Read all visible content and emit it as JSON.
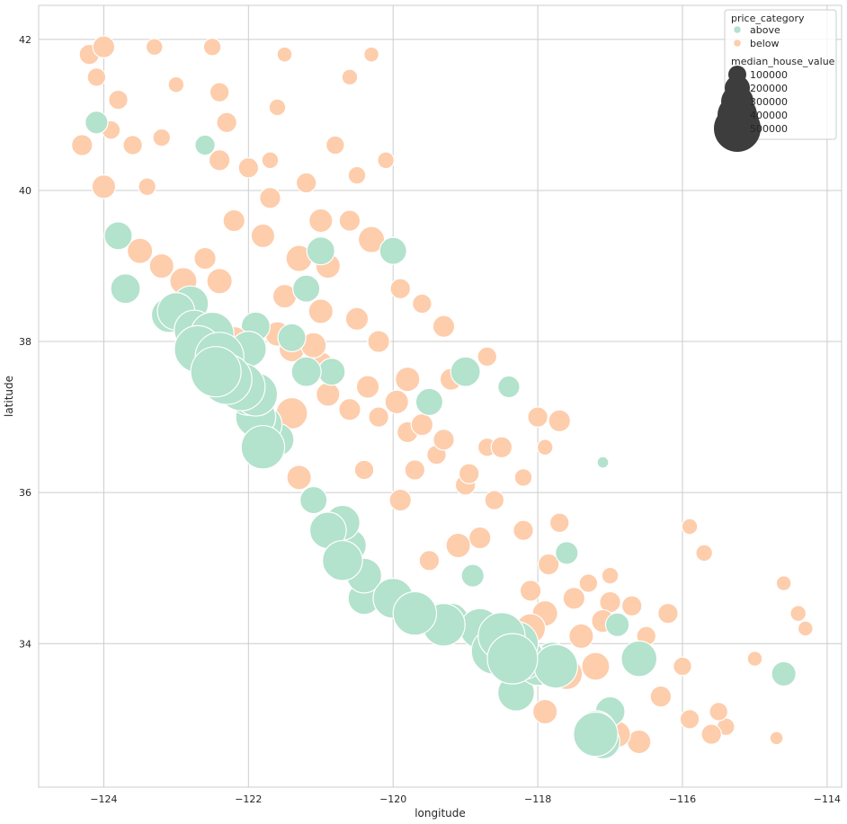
{
  "chart_data": {
    "type": "scatter",
    "title": "",
    "xlabel": "longitude",
    "ylabel": "latitude",
    "xlim": [
      -124.9,
      -113.8
    ],
    "ylim": [
      32.1,
      42.45
    ],
    "x_ticks": [
      -124,
      -122,
      -120,
      -118,
      -116,
      -114
    ],
    "x_tick_labels": [
      "−124",
      "−122",
      "−120",
      "−118",
      "−116",
      "−114"
    ],
    "y_ticks": [
      34,
      36,
      38,
      40,
      42
    ],
    "y_tick_labels": [
      "34",
      "36",
      "38",
      "40",
      "42"
    ],
    "grid": true,
    "legend_position": "top-right",
    "hue_title": "price_category",
    "size_title": "median_house_value",
    "series": [
      {
        "name": "above",
        "color": "#b3e2cd"
      },
      {
        "name": "below",
        "color": "#fdcdac"
      }
    ],
    "size_legend": [
      {
        "label": "100000",
        "value": 100000
      },
      {
        "label": "200000",
        "value": 200000
      },
      {
        "label": "300000",
        "value": 300000
      },
      {
        "label": "400000",
        "value": 400000
      },
      {
        "label": "500000",
        "value": 500000
      }
    ],
    "point_color_edge": "#ffffff",
    "size_legend_color": "#3d3d3d",
    "points": [
      {
        "x": -124.2,
        "y": 41.8,
        "v": 150000,
        "c": "below"
      },
      {
        "x": -124.0,
        "y": 41.9,
        "v": 170000,
        "c": "below"
      },
      {
        "x": -124.3,
        "y": 40.6,
        "v": 160000,
        "c": "below"
      },
      {
        "x": -124.1,
        "y": 40.9,
        "v": 180000,
        "c": "above"
      },
      {
        "x": -123.9,
        "y": 40.8,
        "v": 130000,
        "c": "below"
      },
      {
        "x": -124.0,
        "y": 40.05,
        "v": 190000,
        "c": "below"
      },
      {
        "x": -123.6,
        "y": 40.6,
        "v": 140000,
        "c": "below"
      },
      {
        "x": -123.2,
        "y": 40.7,
        "v": 120000,
        "c": "below"
      },
      {
        "x": -122.6,
        "y": 40.6,
        "v": 150000,
        "c": "above"
      },
      {
        "x": -122.4,
        "y": 41.3,
        "v": 140000,
        "c": "below"
      },
      {
        "x": -122.4,
        "y": 40.4,
        "v": 160000,
        "c": "below"
      },
      {
        "x": -122.0,
        "y": 40.3,
        "v": 150000,
        "c": "below"
      },
      {
        "x": -121.7,
        "y": 40.4,
        "v": 110000,
        "c": "below"
      },
      {
        "x": -121.2,
        "y": 40.1,
        "v": 150000,
        "c": "below"
      },
      {
        "x": -120.8,
        "y": 40.6,
        "v": 130000,
        "c": "below"
      },
      {
        "x": -120.5,
        "y": 40.2,
        "v": 120000,
        "c": "below"
      },
      {
        "x": -121.7,
        "y": 39.9,
        "v": 160000,
        "c": "below"
      },
      {
        "x": -122.2,
        "y": 39.6,
        "v": 170000,
        "c": "below"
      },
      {
        "x": -121.8,
        "y": 39.4,
        "v": 190000,
        "c": "below"
      },
      {
        "x": -121.3,
        "y": 39.1,
        "v": 220000,
        "c": "below"
      },
      {
        "x": -121.0,
        "y": 39.2,
        "v": 240000,
        "c": "above"
      },
      {
        "x": -120.9,
        "y": 39.0,
        "v": 200000,
        "c": "below"
      },
      {
        "x": -120.3,
        "y": 39.35,
        "v": 220000,
        "c": "below"
      },
      {
        "x": -120.0,
        "y": 39.2,
        "v": 230000,
        "c": "above"
      },
      {
        "x": -121.5,
        "y": 38.6,
        "v": 190000,
        "c": "below"
      },
      {
        "x": -121.2,
        "y": 38.7,
        "v": 230000,
        "c": "above"
      },
      {
        "x": -121.0,
        "y": 38.4,
        "v": 200000,
        "c": "below"
      },
      {
        "x": -120.5,
        "y": 38.3,
        "v": 180000,
        "c": "below"
      },
      {
        "x": -120.2,
        "y": 38.0,
        "v": 170000,
        "c": "below"
      },
      {
        "x": -123.8,
        "y": 39.4,
        "v": 240000,
        "c": "above"
      },
      {
        "x": -123.5,
        "y": 39.2,
        "v": 210000,
        "c": "below"
      },
      {
        "x": -123.2,
        "y": 39.0,
        "v": 200000,
        "c": "below"
      },
      {
        "x": -122.9,
        "y": 38.8,
        "v": 230000,
        "c": "below"
      },
      {
        "x": -123.0,
        "y": 38.4,
        "v": 350000,
        "c": "above"
      },
      {
        "x": -122.8,
        "y": 38.5,
        "v": 330000,
        "c": "above"
      },
      {
        "x": -123.7,
        "y": 38.7,
        "v": 260000,
        "c": "above"
      },
      {
        "x": -122.5,
        "y": 38.1,
        "v": 420000,
        "c": "above"
      },
      {
        "x": -122.4,
        "y": 37.8,
        "v": 480000,
        "c": "above"
      },
      {
        "x": -122.3,
        "y": 37.5,
        "v": 500000,
        "c": "above"
      },
      {
        "x": -122.1,
        "y": 37.4,
        "v": 470000,
        "c": "above"
      },
      {
        "x": -122.0,
        "y": 37.3,
        "v": 400000,
        "c": "above"
      },
      {
        "x": -121.9,
        "y": 37.0,
        "v": 380000,
        "c": "above"
      },
      {
        "x": -121.8,
        "y": 36.6,
        "v": 420000,
        "c": "above"
      },
      {
        "x": -121.6,
        "y": 36.7,
        "v": 300000,
        "c": "above"
      },
      {
        "x": -122.2,
        "y": 38.0,
        "v": 260000,
        "c": "below"
      },
      {
        "x": -122.0,
        "y": 37.9,
        "v": 330000,
        "c": "above"
      },
      {
        "x": -121.9,
        "y": 38.2,
        "v": 250000,
        "c": "above"
      },
      {
        "x": -121.6,
        "y": 38.1,
        "v": 200000,
        "c": "below"
      },
      {
        "x": -121.4,
        "y": 37.9,
        "v": 210000,
        "c": "below"
      },
      {
        "x": -121.2,
        "y": 37.6,
        "v": 260000,
        "c": "above"
      },
      {
        "x": -121.0,
        "y": 37.7,
        "v": 200000,
        "c": "below"
      },
      {
        "x": -120.9,
        "y": 37.3,
        "v": 190000,
        "c": "below"
      },
      {
        "x": -120.6,
        "y": 37.1,
        "v": 170000,
        "c": "below"
      },
      {
        "x": -120.2,
        "y": 37.0,
        "v": 150000,
        "c": "below"
      },
      {
        "x": -119.8,
        "y": 36.8,
        "v": 160000,
        "c": "below"
      },
      {
        "x": -119.7,
        "y": 36.3,
        "v": 150000,
        "c": "below"
      },
      {
        "x": -119.4,
        "y": 36.5,
        "v": 140000,
        "c": "below"
      },
      {
        "x": -119.0,
        "y": 36.1,
        "v": 150000,
        "c": "below"
      },
      {
        "x": -118.8,
        "y": 35.4,
        "v": 170000,
        "c": "below"
      },
      {
        "x": -119.1,
        "y": 35.3,
        "v": 200000,
        "c": "below"
      },
      {
        "x": -118.7,
        "y": 36.6,
        "v": 130000,
        "c": "below"
      },
      {
        "x": -118.4,
        "y": 37.4,
        "v": 170000,
        "c": "above"
      },
      {
        "x": -118.0,
        "y": 37.0,
        "v": 150000,
        "c": "below"
      },
      {
        "x": -117.9,
        "y": 36.6,
        "v": 100000,
        "c": "below"
      },
      {
        "x": -120.7,
        "y": 35.6,
        "v": 320000,
        "c": "above"
      },
      {
        "x": -120.6,
        "y": 35.3,
        "v": 300000,
        "c": "above"
      },
      {
        "x": -120.0,
        "y": 34.6,
        "v": 380000,
        "c": "above"
      },
      {
        "x": -119.7,
        "y": 34.4,
        "v": 420000,
        "c": "above"
      },
      {
        "x": -119.2,
        "y": 34.3,
        "v": 330000,
        "c": "above"
      },
      {
        "x": -118.8,
        "y": 34.2,
        "v": 380000,
        "c": "above"
      },
      {
        "x": -118.5,
        "y": 34.1,
        "v": 460000,
        "c": "above"
      },
      {
        "x": -118.3,
        "y": 34.0,
        "v": 430000,
        "c": "above"
      },
      {
        "x": -118.2,
        "y": 33.8,
        "v": 400000,
        "c": "above"
      },
      {
        "x": -118.0,
        "y": 33.7,
        "v": 360000,
        "c": "above"
      },
      {
        "x": -118.3,
        "y": 33.35,
        "v": 340000,
        "c": "above"
      },
      {
        "x": -117.8,
        "y": 33.8,
        "v": 300000,
        "c": "above"
      },
      {
        "x": -117.6,
        "y": 33.6,
        "v": 280000,
        "c": "below"
      },
      {
        "x": -117.2,
        "y": 33.7,
        "v": 240000,
        "c": "below"
      },
      {
        "x": -118.1,
        "y": 34.2,
        "v": 260000,
        "c": "below"
      },
      {
        "x": -117.9,
        "y": 34.4,
        "v": 210000,
        "c": "below"
      },
      {
        "x": -117.4,
        "y": 34.1,
        "v": 200000,
        "c": "below"
      },
      {
        "x": -117.1,
        "y": 34.3,
        "v": 180000,
        "c": "below"
      },
      {
        "x": -116.6,
        "y": 33.8,
        "v": 330000,
        "c": "above"
      },
      {
        "x": -117.2,
        "y": 32.85,
        "v": 380000,
        "c": "above"
      },
      {
        "x": -117.1,
        "y": 32.7,
        "v": 310000,
        "c": "above"
      },
      {
        "x": -117.0,
        "y": 33.1,
        "v": 260000,
        "c": "above"
      },
      {
        "x": -116.9,
        "y": 32.8,
        "v": 220000,
        "c": "below"
      },
      {
        "x": -116.6,
        "y": 32.7,
        "v": 190000,
        "c": "below"
      },
      {
        "x": -116.3,
        "y": 33.3,
        "v": 160000,
        "c": "below"
      },
      {
        "x": -115.9,
        "y": 33.0,
        "v": 140000,
        "c": "below"
      },
      {
        "x": -115.6,
        "y": 32.8,
        "v": 150000,
        "c": "below"
      },
      {
        "x": -115.4,
        "y": 32.9,
        "v": 120000,
        "c": "below"
      },
      {
        "x": -116.2,
        "y": 34.4,
        "v": 150000,
        "c": "below"
      },
      {
        "x": -115.9,
        "y": 35.55,
        "v": 100000,
        "c": "below"
      },
      {
        "x": -115.7,
        "y": 35.2,
        "v": 110000,
        "c": "below"
      },
      {
        "x": -114.6,
        "y": 34.8,
        "v": 90000,
        "c": "below"
      },
      {
        "x": -114.4,
        "y": 34.4,
        "v": 100000,
        "c": "below"
      },
      {
        "x": -114.3,
        "y": 34.2,
        "v": 90000,
        "c": "below"
      },
      {
        "x": -114.6,
        "y": 33.6,
        "v": 200000,
        "c": "above"
      },
      {
        "x": -114.55,
        "y": 33.6,
        "v": 120000,
        "c": "below"
      },
      {
        "x": -114.7,
        "y": 32.75,
        "v": 70000,
        "c": "below"
      },
      {
        "x": -115.0,
        "y": 33.8,
        "v": 90000,
        "c": "below"
      },
      {
        "x": -117.7,
        "y": 35.6,
        "v": 140000,
        "c": "below"
      },
      {
        "x": -117.6,
        "y": 35.2,
        "v": 180000,
        "c": "above"
      },
      {
        "x": -118.1,
        "y": 34.7,
        "v": 160000,
        "c": "below"
      },
      {
        "x": -117.3,
        "y": 34.8,
        "v": 130000,
        "c": "below"
      },
      {
        "x": -117.0,
        "y": 34.9,
        "v": 110000,
        "c": "below"
      },
      {
        "x": -117.1,
        "y": 36.4,
        "v": 50000,
        "c": "above"
      },
      {
        "x": -117.7,
        "y": 36.95,
        "v": 170000,
        "c": "below"
      },
      {
        "x": -121.3,
        "y": 36.2,
        "v": 200000,
        "c": "below"
      },
      {
        "x": -121.1,
        "y": 35.9,
        "v": 230000,
        "c": "above"
      },
      {
        "x": -120.4,
        "y": 36.3,
        "v": 140000,
        "c": "below"
      },
      {
        "x": -119.9,
        "y": 35.9,
        "v": 170000,
        "c": "below"
      },
      {
        "x": -118.9,
        "y": 34.9,
        "v": 180000,
        "c": "above"
      },
      {
        "x": -119.5,
        "y": 35.1,
        "v": 150000,
        "c": "below"
      },
      {
        "x": -123.3,
        "y": 41.9,
        "v": 110000,
        "c": "below"
      },
      {
        "x": -122.5,
        "y": 41.9,
        "v": 120000,
        "c": "below"
      },
      {
        "x": -121.5,
        "y": 41.8,
        "v": 90000,
        "c": "below"
      },
      {
        "x": -120.6,
        "y": 41.5,
        "v": 100000,
        "c": "below"
      },
      {
        "x": -120.3,
        "y": 41.8,
        "v": 90000,
        "c": "below"
      },
      {
        "x": -120.1,
        "y": 40.4,
        "v": 110000,
        "c": "below"
      },
      {
        "x": -121.6,
        "y": 41.1,
        "v": 110000,
        "c": "below"
      },
      {
        "x": -123.0,
        "y": 41.4,
        "v": 100000,
        "c": "below"
      },
      {
        "x": -123.8,
        "y": 41.2,
        "v": 140000,
        "c": "below"
      },
      {
        "x": -124.1,
        "y": 41.5,
        "v": 130000,
        "c": "below"
      },
      {
        "x": -122.3,
        "y": 40.9,
        "v": 150000,
        "c": "below"
      },
      {
        "x": -123.4,
        "y": 40.05,
        "v": 120000,
        "c": "below"
      },
      {
        "x": -121.0,
        "y": 39.6,
        "v": 190000,
        "c": "below"
      },
      {
        "x": -120.6,
        "y": 39.6,
        "v": 160000,
        "c": "below"
      },
      {
        "x": -122.6,
        "y": 39.1,
        "v": 170000,
        "c": "below"
      },
      {
        "x": -122.4,
        "y": 38.8,
        "v": 210000,
        "c": "below"
      },
      {
        "x": -119.8,
        "y": 37.5,
        "v": 200000,
        "c": "below"
      },
      {
        "x": -119.5,
        "y": 37.2,
        "v": 230000,
        "c": "above"
      },
      {
        "x": -119.2,
        "y": 37.5,
        "v": 170000,
        "c": "below"
      },
      {
        "x": -119.0,
        "y": 37.6,
        "v": 260000,
        "c": "above"
      },
      {
        "x": -118.7,
        "y": 37.8,
        "v": 140000,
        "c": "below"
      },
      {
        "x": -119.9,
        "y": 38.7,
        "v": 150000,
        "c": "below"
      },
      {
        "x": -119.6,
        "y": 38.5,
        "v": 140000,
        "c": "below"
      },
      {
        "x": -119.3,
        "y": 38.2,
        "v": 170000,
        "c": "below"
      },
      {
        "x": -118.5,
        "y": 36.6,
        "v": 160000,
        "c": "below"
      },
      {
        "x": -118.2,
        "y": 36.2,
        "v": 120000,
        "c": "below"
      },
      {
        "x": -117.9,
        "y": 33.1,
        "v": 200000,
        "c": "below"
      },
      {
        "x": -116.9,
        "y": 34.25,
        "v": 190000,
        "c": "above"
      },
      {
        "x": -116.5,
        "y": 34.1,
        "v": 140000,
        "c": "below"
      },
      {
        "x": -116.0,
        "y": 33.7,
        "v": 130000,
        "c": "below"
      },
      {
        "x": -115.5,
        "y": 33.1,
        "v": 130000,
        "c": "below"
      },
      {
        "x": -122.7,
        "y": 37.9,
        "v": 460000,
        "c": "above"
      },
      {
        "x": -122.45,
        "y": 37.6,
        "v": 500000,
        "c": "above"
      },
      {
        "x": -121.9,
        "y": 37.3,
        "v": 420000,
        "c": "above"
      },
      {
        "x": -121.8,
        "y": 36.9,
        "v": 360000,
        "c": "above"
      },
      {
        "x": -121.4,
        "y": 37.05,
        "v": 280000,
        "c": "below"
      },
      {
        "x": -120.9,
        "y": 35.5,
        "v": 340000,
        "c": "above"
      },
      {
        "x": -120.7,
        "y": 35.1,
        "v": 380000,
        "c": "above"
      },
      {
        "x": -120.4,
        "y": 34.9,
        "v": 320000,
        "c": "above"
      },
      {
        "x": -120.4,
        "y": 34.6,
        "v": 290000,
        "c": "above"
      },
      {
        "x": -119.3,
        "y": 34.25,
        "v": 410000,
        "c": "above"
      },
      {
        "x": -118.6,
        "y": 33.9,
        "v": 450000,
        "c": "above"
      },
      {
        "x": -118.35,
        "y": 33.8,
        "v": 500000,
        "c": "above"
      },
      {
        "x": -117.75,
        "y": 33.7,
        "v": 420000,
        "c": "above"
      },
      {
        "x": -117.2,
        "y": 32.8,
        "v": 430000,
        "c": "above"
      },
      {
        "x": -123.1,
        "y": 38.35,
        "v": 320000,
        "c": "above"
      },
      {
        "x": -122.75,
        "y": 38.15,
        "v": 380000,
        "c": "above"
      },
      {
        "x": -121.4,
        "y": 38.05,
        "v": 240000,
        "c": "above"
      },
      {
        "x": -121.1,
        "y": 37.95,
        "v": 210000,
        "c": "below"
      },
      {
        "x": -120.85,
        "y": 37.6,
        "v": 230000,
        "c": "above"
      },
      {
        "x": -120.35,
        "y": 37.4,
        "v": 180000,
        "c": "below"
      },
      {
        "x": -119.95,
        "y": 37.2,
        "v": 190000,
        "c": "below"
      },
      {
        "x": -119.6,
        "y": 36.9,
        "v": 170000,
        "c": "below"
      },
      {
        "x": -119.3,
        "y": 36.7,
        "v": 160000,
        "c": "below"
      },
      {
        "x": -118.95,
        "y": 36.25,
        "v": 150000,
        "c": "below"
      },
      {
        "x": -118.6,
        "y": 35.9,
        "v": 140000,
        "c": "below"
      },
      {
        "x": -118.2,
        "y": 35.5,
        "v": 150000,
        "c": "below"
      },
      {
        "x": -117.85,
        "y": 35.05,
        "v": 160000,
        "c": "below"
      },
      {
        "x": -117.5,
        "y": 34.6,
        "v": 170000,
        "c": "below"
      },
      {
        "x": -117.0,
        "y": 34.55,
        "v": 160000,
        "c": "below"
      },
      {
        "x": -116.7,
        "y": 34.5,
        "v": 150000,
        "c": "below"
      }
    ]
  }
}
